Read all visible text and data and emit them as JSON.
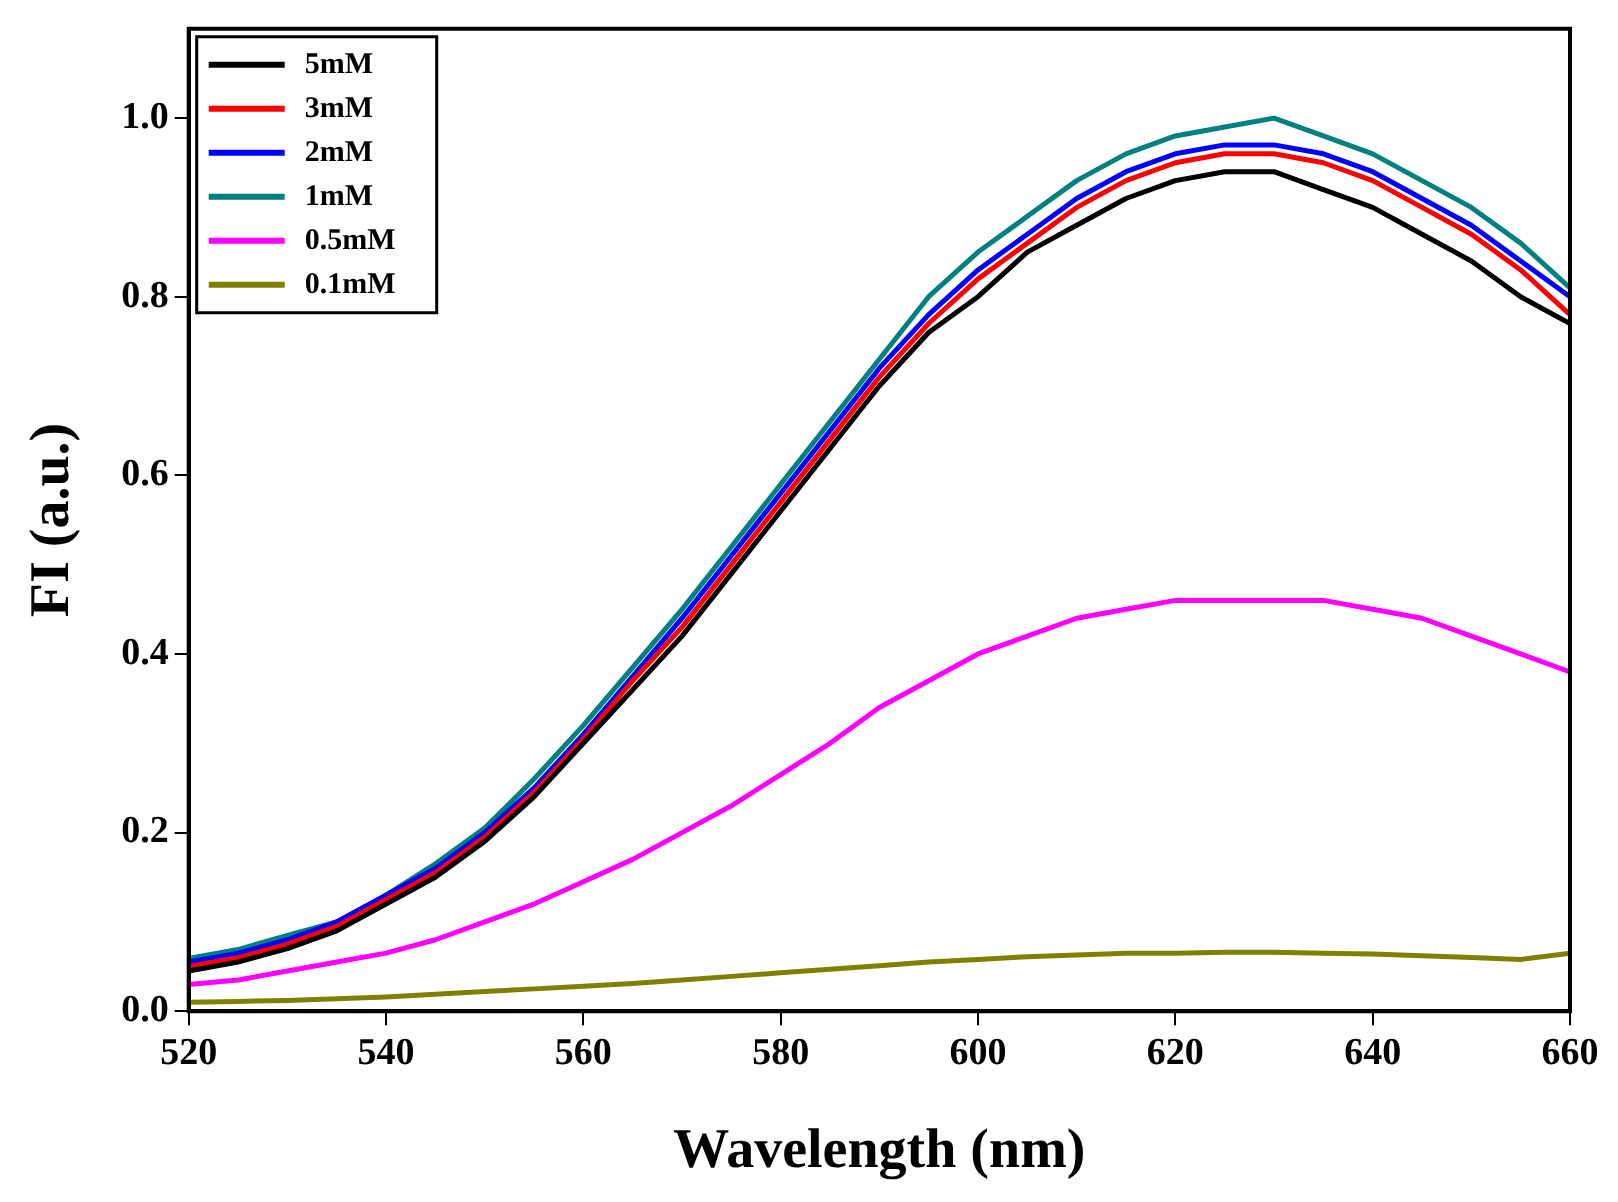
{
  "chart_data": {
    "type": "line",
    "xlabel": "Wavelength (nm)",
    "ylabel": "FI (a.u.)",
    "legend": "top left",
    "marker": "none",
    "line_style": "solid",
    "grid": false,
    "x": [
      520,
      525,
      530,
      535,
      540,
      545,
      550,
      555,
      560,
      565,
      570,
      575,
      580,
      585,
      590,
      595,
      600,
      605,
      610,
      615,
      620,
      625,
      630,
      635,
      640,
      645,
      650,
      655,
      660
    ],
    "xlim": [
      520,
      660
    ],
    "xticks": [
      520,
      540,
      560,
      580,
      600,
      620,
      640,
      660
    ],
    "ylim": [
      0,
      1.1
    ],
    "yticks": [
      {
        "value": 0,
        "label": "0.0"
      },
      0.2,
      0.4,
      0.6,
      0.8,
      {
        "value": 1,
        "label": "1.0"
      }
    ],
    "series": [
      {
        "name": "5mM",
        "color": "#000000",
        "values": [
          0.045,
          0.055,
          0.07,
          0.09,
          0.12,
          0.15,
          0.19,
          0.24,
          0.3,
          0.36,
          0.42,
          0.49,
          0.56,
          0.63,
          0.7,
          0.76,
          0.8,
          0.85,
          0.88,
          0.91,
          0.93,
          0.94,
          0.94,
          0.92,
          0.9,
          0.87,
          0.84,
          0.8,
          0.77
        ]
      },
      {
        "name": "3mM",
        "color": "#ff0000",
        "values": [
          0.05,
          0.06,
          0.075,
          0.095,
          0.125,
          0.155,
          0.195,
          0.245,
          0.305,
          0.37,
          0.43,
          0.5,
          0.57,
          0.64,
          0.71,
          0.77,
          0.82,
          0.86,
          0.9,
          0.93,
          0.95,
          0.96,
          0.96,
          0.95,
          0.93,
          0.9,
          0.87,
          0.83,
          0.78
        ]
      },
      {
        "name": "2mM",
        "color": "#0000ff",
        "values": [
          0.055,
          0.065,
          0.08,
          0.1,
          0.13,
          0.16,
          0.2,
          0.25,
          0.31,
          0.375,
          0.44,
          0.51,
          0.58,
          0.65,
          0.72,
          0.78,
          0.83,
          0.87,
          0.91,
          0.94,
          0.96,
          0.97,
          0.97,
          0.96,
          0.94,
          0.91,
          0.88,
          0.84,
          0.8
        ]
      },
      {
        "name": "1mM",
        "color": "#008080",
        "values": [
          0.059,
          0.069,
          0.085,
          0.1,
          0.13,
          0.165,
          0.205,
          0.26,
          0.32,
          0.385,
          0.45,
          0.52,
          0.59,
          0.66,
          0.73,
          0.8,
          0.85,
          0.89,
          0.93,
          0.96,
          0.98,
          0.99,
          1.0,
          0.98,
          0.96,
          0.93,
          0.9,
          0.86,
          0.81
        ]
      },
      {
        "name": "0.5mM",
        "color": "#ff00ff",
        "values": [
          0.03,
          0.035,
          0.045,
          0.055,
          0.065,
          0.08,
          0.1,
          0.12,
          0.145,
          0.17,
          0.2,
          0.23,
          0.265,
          0.3,
          0.34,
          0.37,
          0.4,
          0.42,
          0.44,
          0.45,
          0.46,
          0.46,
          0.46,
          0.46,
          0.45,
          0.44,
          0.42,
          0.4,
          0.38
        ]
      },
      {
        "name": "0.1mM",
        "color": "#808000",
        "values": [
          0.01,
          0.011,
          0.012,
          0.014,
          0.016,
          0.019,
          0.022,
          0.025,
          0.028,
          0.031,
          0.035,
          0.039,
          0.043,
          0.047,
          0.051,
          0.055,
          0.058,
          0.061,
          0.063,
          0.065,
          0.065,
          0.066,
          0.066,
          0.065,
          0.064,
          0.062,
          0.06,
          0.058,
          0.065
        ]
      }
    ]
  }
}
